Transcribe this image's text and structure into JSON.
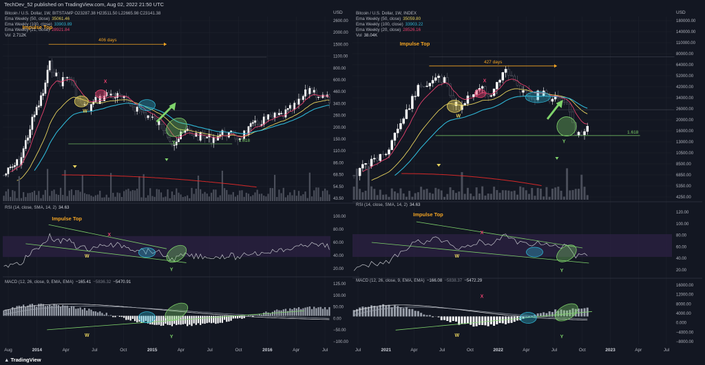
{
  "header": {
    "published": "TechDev_52 published on TradingView.com, Aug 02, 2022 21:50 UTC"
  },
  "footer": {
    "brand": "TradingView"
  },
  "colors": {
    "bg": "#131722",
    "ema50": "#e8d35e",
    "ema100": "#2fb7d6",
    "ema20": "#e8416e",
    "grid": "#1e222d",
    "text": "#b2b5be",
    "annotation_orange": "#f6a623",
    "marker_x": "#e8416e",
    "marker_wy": "#e8d35e",
    "trendline": "#7fd36b",
    "fib": "#7fd36b",
    "vol_ma": "#d62828",
    "rsi_band": "#2a2141"
  },
  "panels": [
    {
      "id": "left",
      "ohlc": {
        "symbol": "Bitcoin / U.S. Dollar, 1W, BITSTAMP",
        "o": "O23287.38",
        "h": "H23511.50",
        "l": "L22665.98",
        "c": "C23141.38"
      },
      "ema_legend": [
        {
          "label": "Ema Weekly (50, close)",
          "value": "35061.46",
          "color": "#e8d35e"
        },
        {
          "label": "Ema Weekly (100, close)",
          "value": "33903.89",
          "color": "#2fb7d6"
        },
        {
          "label": "Ema Weekly (21, close)",
          "value": "28921.84",
          "color": "#e8416e"
        }
      ],
      "vol_legend": {
        "label": "Vol",
        "value": "2.712K"
      },
      "price_axis": {
        "unit": "USD",
        "ticks": [
          "2600.00",
          "2000.00",
          "1500.00",
          "1100.00",
          "800.00",
          "600.00",
          "460.00",
          "340.00",
          "260.00",
          "200.00",
          "150.00",
          "110.00",
          "86.00",
          "68.50",
          "54.50",
          "43.50"
        ]
      },
      "rsi_title": "RSI (14, close, SMA, 14, 2)",
      "rsi_value": "34.63",
      "rsi_ticks": [
        "100.00",
        "80.00",
        "60.00",
        "40.00",
        "20.00"
      ],
      "macd_title": "MACD (12, 26, close, 9, EMA, EMA)",
      "macd_values": [
        "−165.41",
        "−5836.32",
        "−5470.91"
      ],
      "macd_ticks": [
        "125.00",
        "100.00",
        "50.00",
        "0.00",
        "−50.00",
        "−100.00"
      ],
      "time_ticks": [
        "Aug",
        "2014",
        "Apr",
        "Jul",
        "Oct",
        "2015",
        "Apr",
        "Jul",
        "Oct",
        "2016",
        "Apr",
        "Jul"
      ],
      "annotations": {
        "impulse_top": "Impulse Top",
        "days": "406 days",
        "fib": "1.618",
        "x": "X",
        "w": "W",
        "y": "Y"
      }
    },
    {
      "id": "right",
      "ohlc": {
        "symbol": "Bitcoin / U.S. Dollar, 1W, INDEX"
      },
      "ema_legend": [
        {
          "label": "Ema Weekly (50, close)",
          "value": "35059.80",
          "color": "#e8d35e"
        },
        {
          "label": "Ema Weekly (100, close)",
          "value": "33903.22",
          "color": "#2fb7d6"
        },
        {
          "label": "Ema Weekly (20, close)",
          "value": "28526.16",
          "color": "#e8416e"
        }
      ],
      "vol_legend": {
        "label": "Vol",
        "value": "38.04K"
      },
      "price_axis": {
        "unit": "USD",
        "ticks": [
          "180000.00",
          "140000.00",
          "110000.00",
          "80000.00",
          "64000.00",
          "52000.00",
          "42000.00",
          "34000.00",
          "26000.00",
          "20000.00",
          "16000.00",
          "13000.00",
          "10500.00",
          "8500.00",
          "6850.00",
          "5350.00",
          "4250.00"
        ]
      },
      "rsi_title": "RSI (14, close, SMA, 14, 2)",
      "rsi_value": "34.63",
      "rsi_ticks": [
        "120.00",
        "100.00",
        "80.00",
        "60.00",
        "40.00",
        "20.00"
      ],
      "macd_title": "MACD (12, 26, close, 9, EMA, EMA)",
      "macd_values": [
        "−166.08",
        "−5838.37",
        "−5472.29"
      ],
      "macd_ticks": [
        "16000.00",
        "12000.00",
        "8000.00",
        "4000.00",
        "0.000",
        "−4000.00",
        "−8000.00"
      ],
      "time_ticks": [
        "Jul",
        "2021",
        "Apr",
        "Jul",
        "Oct",
        "2022",
        "Apr",
        "Jul",
        "Oct",
        "2023",
        "Apr",
        "Jul"
      ],
      "annotations": {
        "impulse_top": "Impulse Top",
        "days": "427 days",
        "fib": "1.618",
        "x": "X",
        "w": "W",
        "y": "Y"
      }
    }
  ],
  "chart_data": [
    {
      "type": "line",
      "panel": "left-price",
      "x": [
        "2013-08",
        "2013-12",
        "2014-04",
        "2014-07",
        "2014-10",
        "2015-01",
        "2015-04",
        "2015-07",
        "2015-10",
        "2016-01",
        "2016-04",
        "2016-07"
      ],
      "series": [
        {
          "name": "Bitcoin / U.S. Dollar, 1W, BITSTAMP",
          "values": [
            100,
            1000,
            450,
            600,
            380,
            200,
            240,
            280,
            250,
            420,
            440,
            620
          ]
        }
      ],
      "log_scale": true,
      "ylim": [
        43.5,
        2600
      ]
    },
    {
      "type": "line",
      "panel": "right-price",
      "x": [
        "2020-07",
        "2021-01",
        "2021-04",
        "2021-07",
        "2021-10",
        "2022-01",
        "2022-04",
        "2022-07"
      ],
      "series": [
        {
          "name": "Bitcoin / U.S. Dollar, 1W, INDEX",
          "values": [
            9500,
            33000,
            58000,
            34000,
            62000,
            42000,
            40000,
            22000
          ]
        }
      ],
      "log_scale": true,
      "ylim": [
        4250,
        180000
      ]
    }
  ]
}
